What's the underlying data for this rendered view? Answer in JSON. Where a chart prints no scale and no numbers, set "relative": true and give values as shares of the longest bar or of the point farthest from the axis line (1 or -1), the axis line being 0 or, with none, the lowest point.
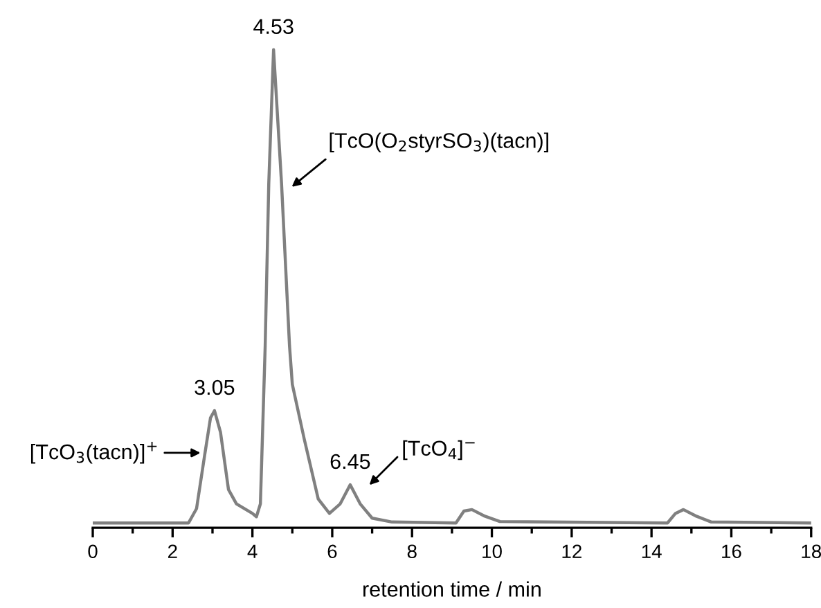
{
  "chart_data": {
    "type": "line",
    "relative": true,
    "xlabel": "retention time / min",
    "xlim": [
      0,
      18
    ],
    "xticks": [
      0,
      {
        "value": 1,
        "label": null
      },
      2,
      {
        "value": 3,
        "label": null
      },
      4,
      {
        "value": 5,
        "label": null
      },
      6,
      {
        "value": 7,
        "label": null
      },
      8,
      {
        "value": 9,
        "label": null
      },
      10,
      {
        "value": 11,
        "label": null
      },
      12,
      {
        "value": 13,
        "label": null
      },
      14,
      {
        "value": 15,
        "label": null
      },
      16,
      {
        "value": 17,
        "label": null
      },
      18
    ],
    "tick_labels": "x",
    "grid": false,
    "marker": "none",
    "line_style": "solid",
    "series": [
      {
        "color": "#808080",
        "x": [
          0,
          2.4,
          2.6,
          2.8,
          2.95,
          3.05,
          3.2,
          3.4,
          3.6,
          4.0,
          4.1,
          4.2,
          4.32,
          4.41,
          4.53,
          4.73,
          4.93,
          5.0,
          5.3,
          5.65,
          5.93,
          6.2,
          6.45,
          6.7,
          7.0,
          7.5,
          9.1,
          9.3,
          9.5,
          9.8,
          10.2,
          14.4,
          14.6,
          14.8,
          15.1,
          15.5,
          18
        ],
        "values": [
          0.01,
          0.01,
          0.04,
          0.15,
          0.23,
          0.245,
          0.2,
          0.08,
          0.05,
          0.03,
          0.023,
          0.05,
          0.38,
          0.72,
          1.0,
          0.72,
          0.38,
          0.3,
          0.185,
          0.06,
          0.03,
          0.05,
          0.09,
          0.05,
          0.02,
          0.012,
          0.01,
          0.035,
          0.038,
          0.025,
          0.013,
          0.01,
          0.03,
          0.038,
          0.025,
          0.012,
          0.01
        ]
      }
    ],
    "annotations": [
      {
        "text": "4.53",
        "x": 4.53,
        "y": 1.0
      },
      {
        "text": "3.05",
        "x": 3.05,
        "y": 0.245
      },
      {
        "text": "6.45",
        "x": 6.45,
        "y": 0.09
      },
      "[TcO$_{3}$(tacn)]$^{+}$",
      "[TcO(O$_{2}$styrSO$_{3}$)(tacn)]",
      "[TcO$_{4}$]$^{−}$"
    ]
  }
}
